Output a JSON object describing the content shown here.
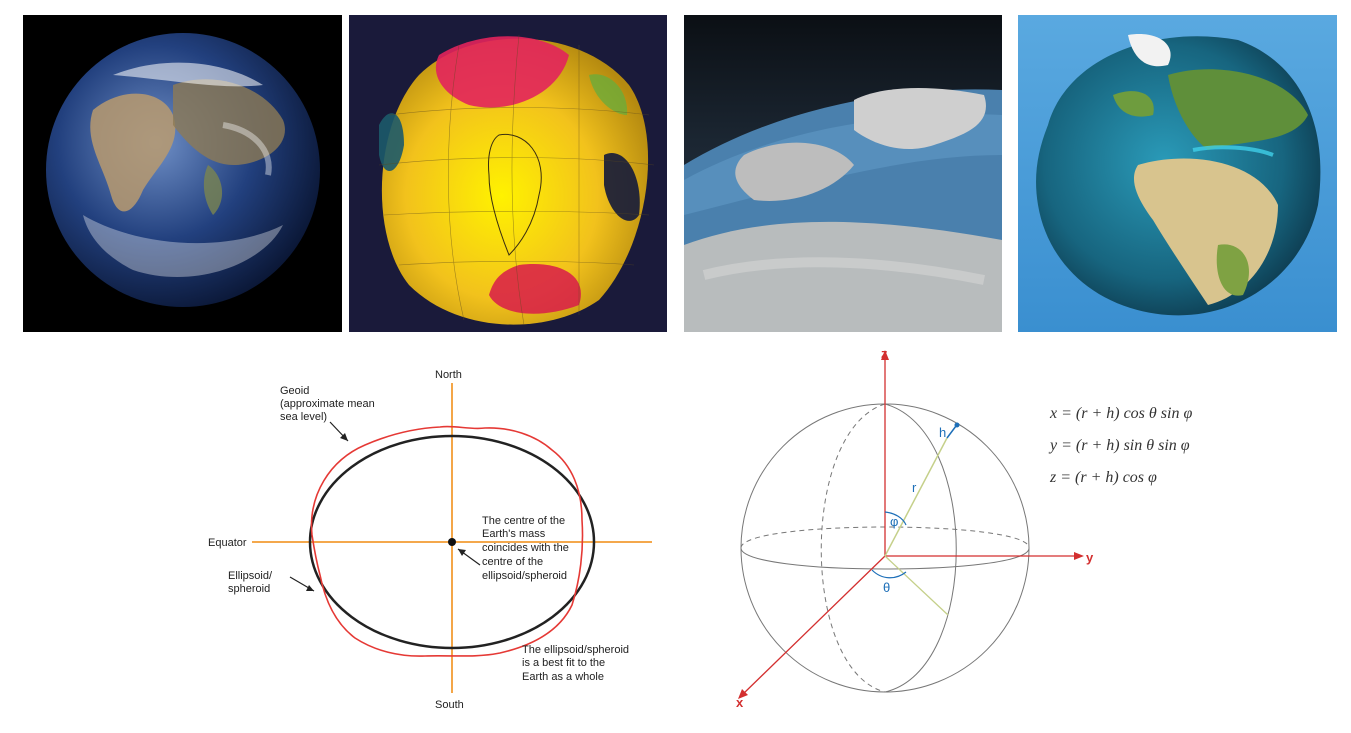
{
  "images": [
    {
      "icon": "earth-photo-icon"
    },
    {
      "icon": "geoid-gravity-map-icon"
    },
    {
      "icon": "relief-terrain-icon"
    },
    {
      "icon": "earth-relief-globe-icon"
    }
  ],
  "geoid_diagram": {
    "north": "North",
    "south": "South",
    "equator": "Equator",
    "geoid_label": [
      "Geoid",
      "(approximate mean",
      "sea level)"
    ],
    "ellipsoid_label": [
      "Ellipsoid/",
      "spheroid"
    ],
    "centre_note": [
      "The centre of the",
      "Earth's mass",
      "coincides with the",
      "centre of the",
      "ellipsoid/spheroid"
    ],
    "fit_note": [
      "The ellipsoid/spheroid",
      "is a best fit to the",
      "Earth as a whole"
    ],
    "colors": {
      "geoid": "#e53935",
      "ellipsoid": "#222222",
      "axes": "#f39c33"
    }
  },
  "coord_diagram": {
    "axis_z": "z",
    "axis_y": "y",
    "axis_x": "x",
    "r": "r",
    "h": "h",
    "phi": "φ",
    "theta": "θ",
    "colors": {
      "axes": "#d32f2f",
      "vector": "#c5d08a",
      "symbols": "#1d6fb8"
    }
  },
  "formulas": [
    "x = (r + h) cos θ sin φ",
    "y = (r + h) sin θ sin φ",
    "z = (r + h) cos φ"
  ]
}
